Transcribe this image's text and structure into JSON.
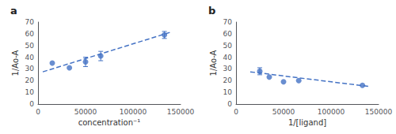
{
  "chart_data": [
    {
      "type": "scatter",
      "title": "a",
      "xlabel": "concentration⁻¹",
      "ylabel": "1/Ao-A",
      "x": [
        15000,
        33000,
        50000,
        66000,
        133000
      ],
      "values": [
        35,
        31,
        36,
        41,
        59
      ],
      "y_err": [
        0,
        0,
        4,
        4,
        3
      ],
      "color": "#4472C4",
      "marker": "circle",
      "trendline": {
        "x": [
          5000,
          140000
        ],
        "y": [
          27.5,
          61.5
        ],
        "color": "#4472C4",
        "line_style": "dashed"
      },
      "xlim": [
        0,
        150000
      ],
      "xticks": [
        0,
        50000,
        100000,
        150000
      ],
      "ylim": [
        0,
        70
      ],
      "yticks": [
        0,
        10,
        20,
        30,
        40,
        50,
        60,
        70
      ],
      "grid": false
    },
    {
      "type": "scatter",
      "title": "b",
      "xlabel": "1/[ligand]",
      "ylabel": "1/Ao-A",
      "x": [
        25000,
        35000,
        50000,
        66000,
        133000
      ],
      "values": [
        28,
        23,
        19,
        20,
        16
      ],
      "y_err": [
        3,
        0,
        0,
        0,
        0
      ],
      "color": "#4472C4",
      "marker": "circle",
      "trendline": {
        "x": [
          15000,
          140000
        ],
        "y": [
          27.5,
          15.0
        ],
        "color": "#4472C4",
        "line_style": "dashed"
      },
      "xlim": [
        0,
        150000
      ],
      "xticks": [
        0,
        50000,
        100000,
        150000
      ],
      "ylim": [
        0,
        70
      ],
      "yticks": [
        0,
        10,
        20,
        30,
        40,
        50,
        60,
        70
      ],
      "grid": false
    }
  ]
}
